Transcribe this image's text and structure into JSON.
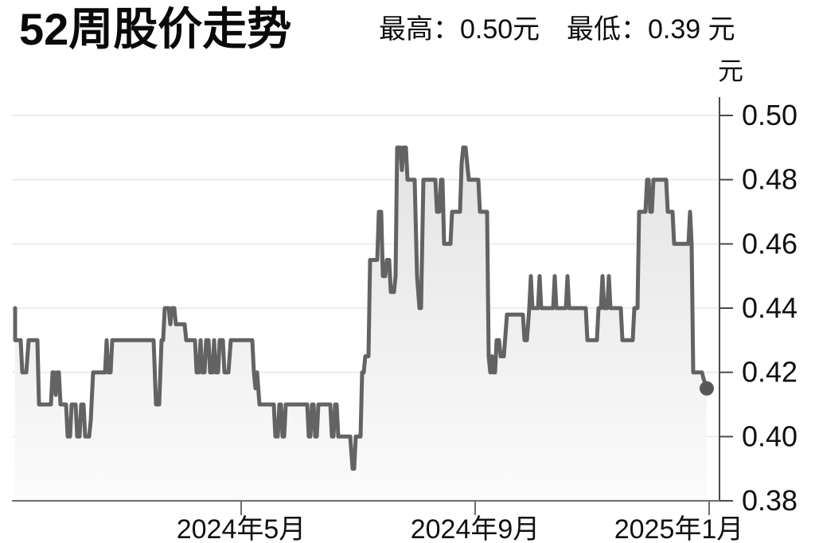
{
  "header": {
    "title": "52周股价走势",
    "high_label": "最高：0.50元",
    "low_label": "最低：0.39 元"
  },
  "chart_data": {
    "type": "area",
    "title": "52周股价走势",
    "unit_label": "元",
    "high": 0.5,
    "low": 0.39,
    "last_price": 0.415,
    "ylim": [
      0.38,
      0.5
    ],
    "yticks": [
      0.5,
      0.48,
      0.46,
      0.44,
      0.42,
      0.4,
      0.38
    ],
    "ytick_labels": [
      "0.50",
      "0.48",
      "0.46",
      "0.44",
      "0.42",
      "0.40",
      "0.38"
    ],
    "grid": true,
    "legend": "none",
    "xticks": [
      {
        "label": "2024年5月",
        "x": 303,
        "label_x": 303
      },
      {
        "label": "2024年9月",
        "x": 597,
        "label_x": 597
      },
      {
        "label": "2025年1月",
        "x": 891,
        "label_x": 853
      }
    ],
    "colors": {
      "line": "#636363",
      "fill_top": "#e3e3e3",
      "fill_bottom": "#fbfbfb",
      "dot": "#575757",
      "grid": "#ececec",
      "axis": "#4a4a4a",
      "tick_text": "#111111"
    },
    "series": [
      {
        "name": "股价",
        "points": [
          [
            19,
            0.44
          ],
          [
            19,
            0.43
          ],
          [
            26,
            0.43
          ],
          [
            28,
            0.42
          ],
          [
            33,
            0.42
          ],
          [
            36,
            0.43
          ],
          [
            47,
            0.43
          ],
          [
            49,
            0.41
          ],
          [
            64,
            0.41
          ],
          [
            66,
            0.42
          ],
          [
            68,
            0.42
          ],
          [
            70,
            0.413
          ],
          [
            72,
            0.42
          ],
          [
            74,
            0.42
          ],
          [
            76,
            0.41
          ],
          [
            83,
            0.41
          ],
          [
            85,
            0.4
          ],
          [
            88,
            0.4
          ],
          [
            90,
            0.41
          ],
          [
            95,
            0.41
          ],
          [
            97,
            0.4
          ],
          [
            100,
            0.4
          ],
          [
            102,
            0.41
          ],
          [
            105,
            0.41
          ],
          [
            107,
            0.4
          ],
          [
            112,
            0.4
          ],
          [
            114,
            0.405
          ],
          [
            117,
            0.42
          ],
          [
            132,
            0.42
          ],
          [
            134,
            0.43
          ],
          [
            136,
            0.42
          ],
          [
            139,
            0.42
          ],
          [
            141,
            0.43
          ],
          [
            147,
            0.43
          ],
          [
            193,
            0.43
          ],
          [
            196,
            0.41
          ],
          [
            200,
            0.41
          ],
          [
            203,
            0.43
          ],
          [
            205,
            0.43
          ],
          [
            207,
            0.44
          ],
          [
            212,
            0.44
          ],
          [
            214,
            0.435
          ],
          [
            216,
            0.44
          ],
          [
            219,
            0.44
          ],
          [
            221,
            0.435
          ],
          [
            232,
            0.435
          ],
          [
            234,
            0.43
          ],
          [
            245,
            0.43
          ],
          [
            247,
            0.42
          ],
          [
            250,
            0.42
          ],
          [
            252,
            0.43
          ],
          [
            254,
            0.42
          ],
          [
            257,
            0.42
          ],
          [
            259,
            0.43
          ],
          [
            262,
            0.43
          ],
          [
            264,
            0.42
          ],
          [
            267,
            0.42
          ],
          [
            269,
            0.43
          ],
          [
            271,
            0.42
          ],
          [
            274,
            0.42
          ],
          [
            276,
            0.43
          ],
          [
            280,
            0.43
          ],
          [
            282,
            0.42
          ],
          [
            287,
            0.42
          ],
          [
            290,
            0.43
          ],
          [
            317,
            0.43
          ],
          [
            319,
            0.42
          ],
          [
            321,
            0.415
          ],
          [
            323,
            0.42
          ],
          [
            326,
            0.41
          ],
          [
            344,
            0.41
          ],
          [
            346,
            0.4
          ],
          [
            349,
            0.4
          ],
          [
            351,
            0.41
          ],
          [
            353,
            0.41
          ],
          [
            355,
            0.4
          ],
          [
            357,
            0.4
          ],
          [
            359,
            0.41
          ],
          [
            386,
            0.41
          ],
          [
            388,
            0.4
          ],
          [
            390,
            0.4
          ],
          [
            392,
            0.41
          ],
          [
            394,
            0.41
          ],
          [
            396,
            0.4
          ],
          [
            398,
            0.4
          ],
          [
            400,
            0.41
          ],
          [
            415,
            0.41
          ],
          [
            417,
            0.4
          ],
          [
            419,
            0.4
          ],
          [
            421,
            0.41
          ],
          [
            423,
            0.41
          ],
          [
            425,
            0.4
          ],
          [
            440,
            0.4
          ],
          [
            443,
            0.39
          ],
          [
            445,
            0.39
          ],
          [
            447,
            0.4
          ],
          [
            453,
            0.4
          ],
          [
            455,
            0.42
          ],
          [
            457,
            0.42
          ],
          [
            459,
            0.425
          ],
          [
            463,
            0.425
          ],
          [
            465,
            0.455
          ],
          [
            474,
            0.455
          ],
          [
            476,
            0.47
          ],
          [
            479,
            0.47
          ],
          [
            481,
            0.45
          ],
          [
            484,
            0.45
          ],
          [
            486,
            0.455
          ],
          [
            489,
            0.455
          ],
          [
            491,
            0.445
          ],
          [
            495,
            0.445
          ],
          [
            497,
            0.45
          ],
          [
            499,
            0.49
          ],
          [
            503,
            0.49
          ],
          [
            505,
            0.483
          ],
          [
            507,
            0.49
          ],
          [
            510,
            0.49
          ],
          [
            512,
            0.48
          ],
          [
            521,
            0.48
          ],
          [
            524,
            0.45
          ],
          [
            527,
            0.44
          ],
          [
            529,
            0.44
          ],
          [
            532,
            0.48
          ],
          [
            547,
            0.48
          ],
          [
            549,
            0.47
          ],
          [
            552,
            0.47
          ],
          [
            554,
            0.48
          ],
          [
            556,
            0.48
          ],
          [
            558,
            0.46
          ],
          [
            566,
            0.46
          ],
          [
            568,
            0.47
          ],
          [
            578,
            0.47
          ],
          [
            580,
            0.485
          ],
          [
            582,
            0.49
          ],
          [
            585,
            0.49
          ],
          [
            587,
            0.485
          ],
          [
            589,
            0.48
          ],
          [
            601,
            0.48
          ],
          [
            603,
            0.47
          ],
          [
            612,
            0.47
          ],
          [
            614,
            0.425
          ],
          [
            616,
            0.42
          ],
          [
            618,
            0.425
          ],
          [
            620,
            0.42
          ],
          [
            622,
            0.42
          ],
          [
            624,
            0.43
          ],
          [
            627,
            0.43
          ],
          [
            629,
            0.425
          ],
          [
            633,
            0.425
          ],
          [
            637,
            0.438
          ],
          [
            657,
            0.438
          ],
          [
            659,
            0.43
          ],
          [
            662,
            0.43
          ],
          [
            665,
            0.44
          ],
          [
            667,
            0.45
          ],
          [
            669,
            0.44
          ],
          [
            676,
            0.44
          ],
          [
            678,
            0.45
          ],
          [
            680,
            0.44
          ],
          [
            695,
            0.44
          ],
          [
            697,
            0.45
          ],
          [
            699,
            0.44
          ],
          [
            711,
            0.44
          ],
          [
            713,
            0.45
          ],
          [
            715,
            0.44
          ],
          [
            736,
            0.44
          ],
          [
            738,
            0.43
          ],
          [
            750,
            0.43
          ],
          [
            752,
            0.44
          ],
          [
            755,
            0.44
          ],
          [
            757,
            0.45
          ],
          [
            759,
            0.44
          ],
          [
            763,
            0.44
          ],
          [
            765,
            0.45
          ],
          [
            767,
            0.44
          ],
          [
            780,
            0.44
          ],
          [
            782,
            0.43
          ],
          [
            795,
            0.43
          ],
          [
            797,
            0.44
          ],
          [
            801,
            0.44
          ],
          [
            803,
            0.47
          ],
          [
            811,
            0.47
          ],
          [
            813,
            0.48
          ],
          [
            815,
            0.48
          ],
          [
            817,
            0.47
          ],
          [
            819,
            0.47
          ],
          [
            821,
            0.48
          ],
          [
            837,
            0.48
          ],
          [
            839,
            0.47
          ],
          [
            845,
            0.47
          ],
          [
            847,
            0.46
          ],
          [
            865,
            0.46
          ],
          [
            867,
            0.47
          ],
          [
            869,
            0.46
          ],
          [
            871,
            0.42
          ],
          [
            874,
            0.42
          ],
          [
            882,
            0.42
          ],
          [
            884,
            0.418
          ],
          [
            888,
            0.415
          ]
        ]
      }
    ]
  }
}
